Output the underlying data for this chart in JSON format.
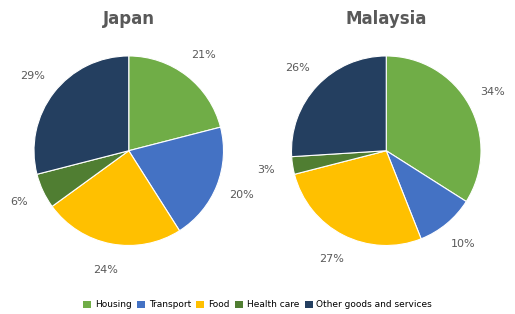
{
  "japan": {
    "title": "Japan",
    "values": [
      21,
      20,
      24,
      6,
      29
    ],
    "labels": [
      "21%",
      "20%",
      "24%",
      "6%",
      "29%"
    ]
  },
  "malaysia": {
    "title": "Malaysia",
    "values": [
      34,
      10,
      27,
      3,
      26
    ],
    "labels": [
      "34%",
      "10%",
      "27%",
      "3%",
      "26%"
    ]
  },
  "categories": [
    "Housing",
    "Transport",
    "Food",
    "Health care",
    "Other goods and services"
  ],
  "colors": [
    "#70AD47",
    "#4472C4",
    "#FFC000",
    "#507E32",
    "#243F60"
  ],
  "title_color": "#595959",
  "label_color": "#595959",
  "bg_color": "#FFFFFF"
}
